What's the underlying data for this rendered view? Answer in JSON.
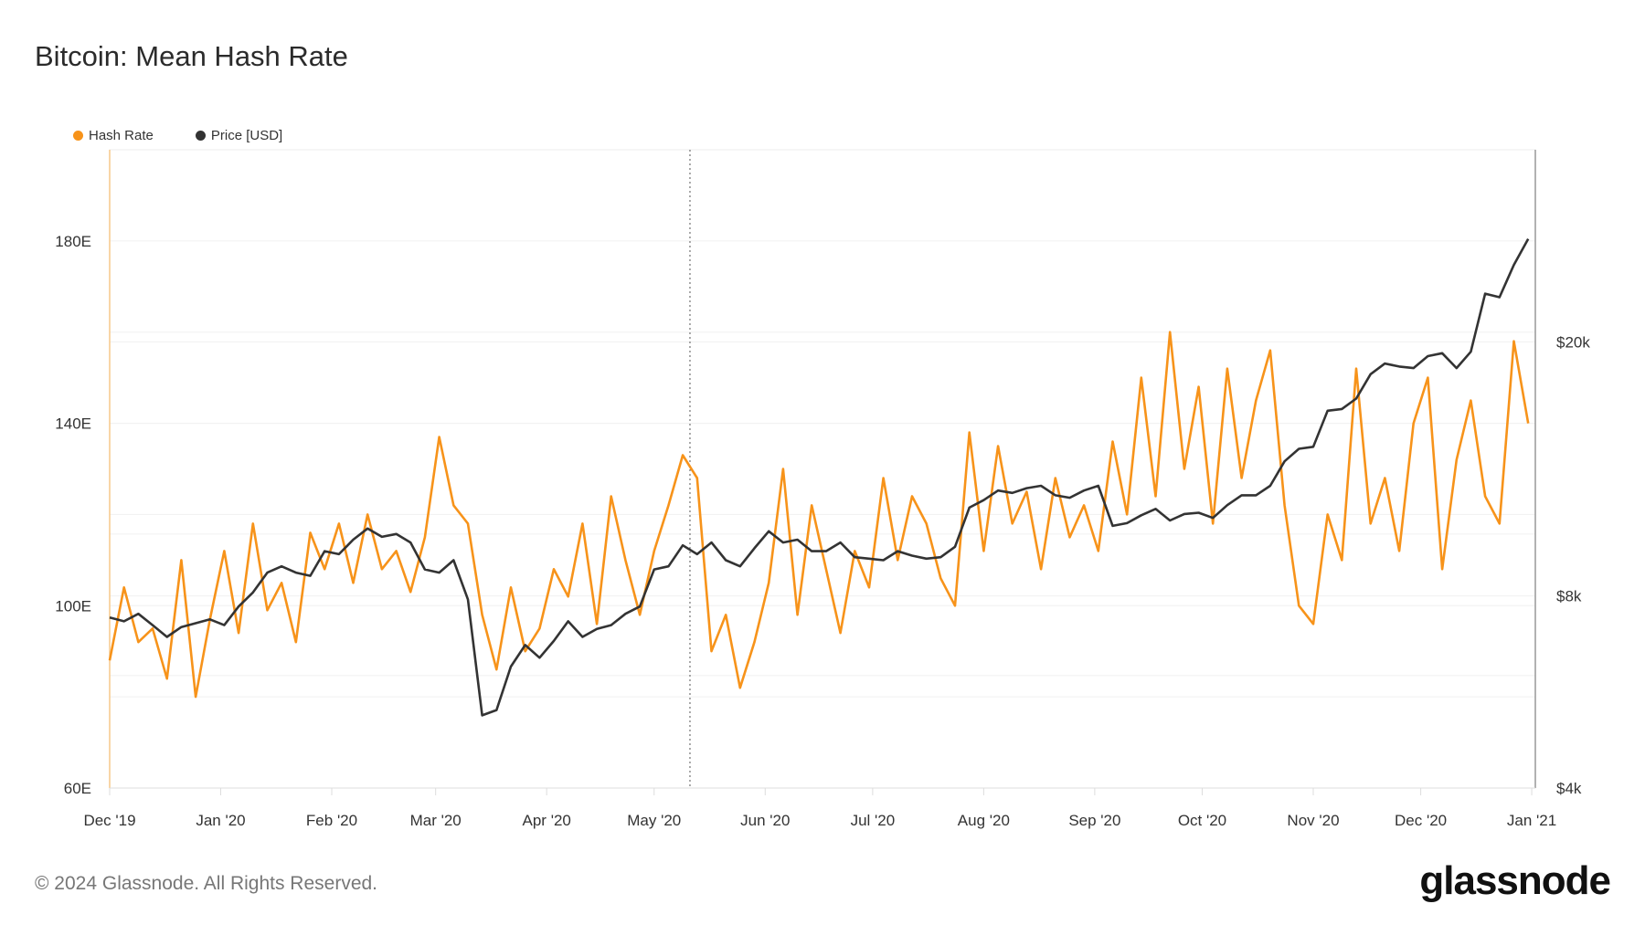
{
  "title": "Bitcoin: Mean Hash Rate",
  "footer": "© 2024 Glassnode. All Rights Reserved.",
  "logo": "glassnode",
  "legend": [
    {
      "label": "Hash Rate",
      "color": "#f7931a"
    },
    {
      "label": "Price [USD]",
      "color": "#333333"
    }
  ],
  "chart_data": {
    "type": "line",
    "title": "Bitcoin: Mean Hash Rate",
    "x_range": [
      "2019-12-01",
      "2021-01-02"
    ],
    "x_ticks": [
      {
        "date": "2019-12-01",
        "label": "Dec '19"
      },
      {
        "date": "2020-01-01",
        "label": "Jan '20"
      },
      {
        "date": "2020-02-01",
        "label": "Feb '20"
      },
      {
        "date": "2020-03-01",
        "label": "Mar '20"
      },
      {
        "date": "2020-04-01",
        "label": "Apr '20"
      },
      {
        "date": "2020-05-01",
        "label": "May '20"
      },
      {
        "date": "2020-06-01",
        "label": "Jun '20"
      },
      {
        "date": "2020-07-01",
        "label": "Jul '20"
      },
      {
        "date": "2020-08-01",
        "label": "Aug '20"
      },
      {
        "date": "2020-09-01",
        "label": "Sep '20"
      },
      {
        "date": "2020-10-01",
        "label": "Oct '20"
      },
      {
        "date": "2020-11-01",
        "label": "Nov '20"
      },
      {
        "date": "2020-12-01",
        "label": "Dec '20"
      },
      {
        "date": "2021-01-01",
        "label": "Jan '21"
      }
    ],
    "y_left": {
      "scale": "linear",
      "range": [
        60,
        200
      ],
      "ticks": [
        60,
        100,
        140,
        180
      ],
      "tick_labels": [
        "60E",
        "100E",
        "140E",
        "180E"
      ],
      "gridlines": [
        60,
        80,
        100,
        120,
        140,
        160,
        180
      ]
    },
    "y_right": {
      "scale": "log",
      "range": [
        4000,
        40000
      ],
      "ticks": [
        4000,
        8000,
        20000
      ],
      "tick_labels": [
        "$4k",
        "$8k",
        "$20k"
      ],
      "gridlines": [
        6000,
        8000,
        10000,
        20000
      ]
    },
    "marker_line_date": "2020-05-11",
    "grid": true,
    "legend_position": "top-left",
    "x": [
      "2019-12-01",
      "2019-12-05",
      "2019-12-09",
      "2019-12-13",
      "2019-12-17",
      "2019-12-21",
      "2019-12-25",
      "2019-12-29",
      "2020-01-02",
      "2020-01-06",
      "2020-01-10",
      "2020-01-14",
      "2020-01-18",
      "2020-01-22",
      "2020-01-26",
      "2020-01-30",
      "2020-02-03",
      "2020-02-07",
      "2020-02-11",
      "2020-02-15",
      "2020-02-19",
      "2020-02-23",
      "2020-02-27",
      "2020-03-02",
      "2020-03-06",
      "2020-03-10",
      "2020-03-14",
      "2020-03-18",
      "2020-03-22",
      "2020-03-26",
      "2020-03-30",
      "2020-04-03",
      "2020-04-07",
      "2020-04-11",
      "2020-04-15",
      "2020-04-19",
      "2020-04-23",
      "2020-04-27",
      "2020-05-01",
      "2020-05-05",
      "2020-05-09",
      "2020-05-13",
      "2020-05-17",
      "2020-05-21",
      "2020-05-25",
      "2020-05-29",
      "2020-06-02",
      "2020-06-06",
      "2020-06-10",
      "2020-06-14",
      "2020-06-18",
      "2020-06-22",
      "2020-06-26",
      "2020-06-30",
      "2020-07-04",
      "2020-07-08",
      "2020-07-12",
      "2020-07-16",
      "2020-07-20",
      "2020-07-24",
      "2020-07-28",
      "2020-08-01",
      "2020-08-05",
      "2020-08-09",
      "2020-08-13",
      "2020-08-17",
      "2020-08-21",
      "2020-08-25",
      "2020-08-29",
      "2020-09-02",
      "2020-09-06",
      "2020-09-10",
      "2020-09-14",
      "2020-09-18",
      "2020-09-22",
      "2020-09-26",
      "2020-09-30",
      "2020-10-04",
      "2020-10-08",
      "2020-10-12",
      "2020-10-16",
      "2020-10-20",
      "2020-10-24",
      "2020-10-28",
      "2020-11-01",
      "2020-11-05",
      "2020-11-09",
      "2020-11-13",
      "2020-11-17",
      "2020-11-21",
      "2020-11-25",
      "2020-11-29",
      "2020-12-03",
      "2020-12-07",
      "2020-12-11",
      "2020-12-15",
      "2020-12-19",
      "2020-12-23",
      "2020-12-27",
      "2020-12-31"
    ],
    "series": [
      {
        "name": "Hash Rate",
        "axis": "left",
        "color": "#f7931a",
        "values": [
          88,
          104,
          92,
          95,
          84,
          110,
          80,
          97,
          112,
          94,
          118,
          99,
          105,
          92,
          116,
          108,
          118,
          105,
          120,
          108,
          112,
          103,
          115,
          137,
          122,
          118,
          98,
          86,
          104,
          90,
          95,
          108,
          102,
          118,
          96,
          124,
          110,
          98,
          112,
          122,
          133,
          128,
          90,
          98,
          82,
          92,
          105,
          130,
          98,
          122,
          108,
          94,
          112,
          104,
          128,
          110,
          124,
          118,
          106,
          100,
          138,
          112,
          135,
          118,
          125,
          108,
          128,
          115,
          122,
          112,
          136,
          120,
          150,
          124,
          160,
          130,
          148,
          118,
          152,
          128,
          145,
          156,
          122,
          100,
          96,
          120,
          110,
          152,
          118,
          128,
          112,
          140,
          150,
          108,
          132,
          145,
          124,
          118,
          158,
          140
        ]
      },
      {
        "name": "Price [USD]",
        "axis": "right",
        "color": "#333333",
        "values": [
          7400,
          7300,
          7500,
          7200,
          6900,
          7150,
          7250,
          7350,
          7200,
          7700,
          8100,
          8700,
          8900,
          8700,
          8600,
          9400,
          9300,
          9800,
          10200,
          9900,
          10000,
          9700,
          8800,
          8700,
          9100,
          7900,
          5200,
          5300,
          6200,
          6700,
          6400,
          6800,
          7300,
          6900,
          7100,
          7200,
          7500,
          7700,
          8800,
          8900,
          9600,
          9300,
          9700,
          9100,
          8900,
          9500,
          10100,
          9700,
          9800,
          9400,
          9400,
          9700,
          9200,
          9150,
          9100,
          9400,
          9250,
          9150,
          9200,
          9550,
          11000,
          11300,
          11700,
          11600,
          11800,
          11900,
          11500,
          11400,
          11700,
          11900,
          10300,
          10400,
          10700,
          10950,
          10500,
          10750,
          10800,
          10600,
          11100,
          11500,
          11500,
          11900,
          13000,
          13600,
          13700,
          15600,
          15700,
          16300,
          17800,
          18500,
          18300,
          18200,
          19000,
          19200,
          18200,
          19300,
          23800,
          23500,
          26400,
          29000
        ]
      }
    ]
  }
}
